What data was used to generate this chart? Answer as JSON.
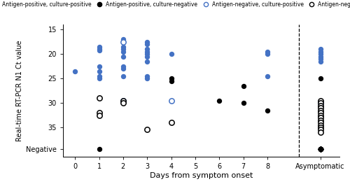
{
  "xlabel": "Days from symptom onset",
  "ylabel": "Real-time RT-PCR N1 Ct value",
  "y_ticks": [
    15,
    20,
    25,
    30,
    35
  ],
  "y_tick_labels": [
    "15",
    "20",
    "25",
    "30",
    "35"
  ],
  "negative_y": 39.5,
  "ylim_top": 14.0,
  "ylim_bottom": 41.0,
  "colors": {
    "blue": "#4472C4",
    "black": "#000000"
  },
  "legend_labels": [
    "Antigen-positive, culture-positive",
    "Antigen-positive, culture-negative",
    "Antigen-negative, culture-positive",
    "Antigen-negative, culture-negative"
  ],
  "blue_filled": {
    "0": [
      23.5
    ],
    "1": [
      18.5,
      19.0,
      19.2,
      22.5,
      23.5,
      24.5,
      25.0
    ],
    "2": [
      17.0,
      18.5,
      19.0,
      19.5,
      20.5,
      22.5,
      23.0,
      24.5,
      30.0
    ],
    "3": [
      17.5,
      18.0,
      19.0,
      19.5,
      20.0,
      20.5,
      21.5,
      24.5,
      25.0
    ],
    "4": [
      20.0
    ],
    "5": [],
    "6": [],
    "7": [],
    "8": [
      19.5,
      20.0,
      24.5
    ],
    "asym": [
      19.0,
      19.5,
      20.0,
      20.5,
      21.0,
      21.5
    ]
  },
  "black_filled": {
    "0": [],
    "1": [
      39.5
    ],
    "2": [
      30.0
    ],
    "3": [],
    "4": [
      25.0,
      25.5
    ],
    "5": [],
    "6": [
      29.5
    ],
    "7": [
      26.5,
      30.0
    ],
    "8": [
      31.5
    ],
    "asym": [
      25.0,
      39.5,
      39.5,
      39.5,
      39.5,
      39.5,
      39.5,
      39.5,
      39.5,
      39.5,
      39.5,
      39.5,
      39.5,
      39.5,
      39.5,
      39.5,
      39.5,
      39.5,
      39.5,
      39.5,
      39.5,
      39.5,
      39.5,
      39.5,
      39.5
    ]
  },
  "blue_open": {
    "0": [],
    "1": [],
    "2": [
      17.5,
      29.5
    ],
    "3": [],
    "4": [
      29.5
    ],
    "5": [],
    "6": [],
    "7": [],
    "8": [],
    "asym": [
      30.0
    ]
  },
  "black_open": {
    "0": [],
    "1": [
      29.0,
      32.0,
      32.5
    ],
    "2": [
      29.5,
      30.0
    ],
    "3": [
      35.5
    ],
    "4": [
      34.0
    ],
    "5": [],
    "6": [],
    "7": [],
    "8": [],
    "asym": [
      29.5,
      30.0,
      30.5,
      31.0,
      31.5,
      32.0,
      32.5,
      33.0,
      33.5,
      34.0,
      34.5,
      35.0,
      35.5,
      36.0
    ]
  },
  "days": [
    0,
    1,
    2,
    3,
    4,
    5,
    6,
    7,
    8
  ],
  "day_labels": [
    "0",
    "1",
    "2",
    "3",
    "4",
    "5",
    "6",
    "7",
    "8"
  ],
  "asym_x": 10.2,
  "dashed_x": 9.3,
  "xlim": [
    -0.5,
    11.0
  ]
}
